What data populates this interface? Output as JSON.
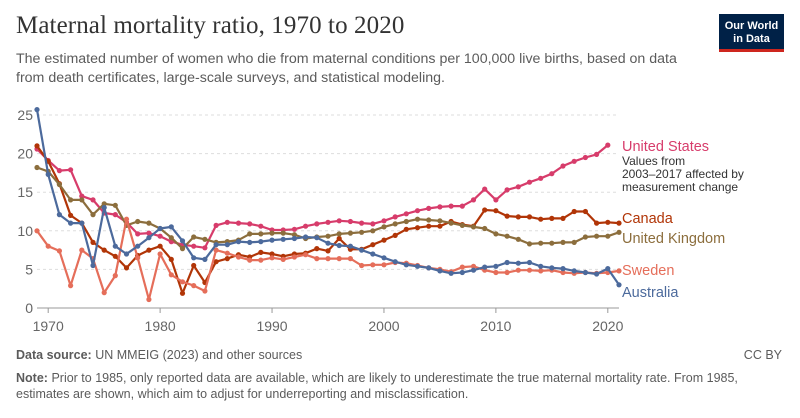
{
  "header": {
    "title": "Maternal mortality ratio, 1970 to 2020",
    "subtitle": "The estimated number of women who die from maternal conditions per 100,000 live births, based on data from death certificates, large-scale surveys, and statistical modeling.",
    "logo_line1": "Our World",
    "logo_line2": "in Data"
  },
  "footer": {
    "source_label": "Data source:",
    "source_text": "UN MMEIG (2023) and other sources",
    "license": "CC BY",
    "note_label": "Note:",
    "note_text": "Prior to 1985, only reported data are available, which are likely to underestimate the true maternal mortality rate. From 1985, estimates are shown, which aim to adjust for underreporting and misclassification."
  },
  "chart_data": {
    "type": "line",
    "title": "Maternal mortality ratio, 1970 to 2020",
    "xlabel": "",
    "ylabel": "",
    "xlim": [
      1969,
      2021
    ],
    "ylim": [
      0,
      25
    ],
    "yticks": [
      0,
      5,
      10,
      15,
      20,
      25
    ],
    "xticks": [
      1970,
      1980,
      1990,
      2000,
      2010,
      2020
    ],
    "grid": "horizontal dashed",
    "annotation": {
      "series": "United States",
      "lines": [
        "Values from",
        "2003–2017 affected by",
        "measurement change"
      ]
    },
    "series": [
      {
        "name": "United States",
        "color": "#d73c6b",
        "points": [
          [
            1969,
            20.6
          ],
          [
            1970,
            19.1
          ],
          [
            1971,
            17.8
          ],
          [
            1972,
            17.9
          ],
          [
            1973,
            14.5
          ],
          [
            1974,
            14.0
          ],
          [
            1975,
            12.3
          ],
          [
            1976,
            12.1
          ],
          [
            1977,
            11.1
          ],
          [
            1978,
            9.6
          ],
          [
            1979,
            9.7
          ],
          [
            1980,
            9.3
          ],
          [
            1981,
            8.6
          ],
          [
            1982,
            8.2
          ],
          [
            1983,
            8.0
          ],
          [
            1984,
            7.8
          ],
          [
            1985,
            10.7
          ],
          [
            1986,
            11.1
          ],
          [
            1987,
            11.0
          ],
          [
            1988,
            10.9
          ],
          [
            1989,
            10.6
          ],
          [
            1990,
            10.1
          ],
          [
            1991,
            10.1
          ],
          [
            1992,
            10.2
          ],
          [
            1993,
            10.6
          ],
          [
            1994,
            10.9
          ],
          [
            1995,
            11.1
          ],
          [
            1996,
            11.3
          ],
          [
            1997,
            11.2
          ],
          [
            1998,
            11.0
          ],
          [
            1999,
            10.9
          ],
          [
            2000,
            11.3
          ],
          [
            2001,
            11.8
          ],
          [
            2002,
            12.2
          ],
          [
            2003,
            12.6
          ],
          [
            2004,
            12.9
          ],
          [
            2005,
            13.1
          ],
          [
            2006,
            13.2
          ],
          [
            2007,
            13.2
          ],
          [
            2008,
            14.0
          ],
          [
            2009,
            15.4
          ],
          [
            2010,
            14.0
          ],
          [
            2011,
            15.3
          ],
          [
            2012,
            15.7
          ],
          [
            2013,
            16.3
          ],
          [
            2014,
            16.8
          ],
          [
            2015,
            17.4
          ],
          [
            2016,
            18.4
          ],
          [
            2017,
            19.0
          ],
          [
            2018,
            19.5
          ],
          [
            2019,
            19.9
          ],
          [
            2020,
            21.1
          ]
        ]
      },
      {
        "name": "Canada",
        "color": "#b13507",
        "points": [
          [
            1969,
            21.0
          ],
          [
            1970,
            19.0
          ],
          [
            1971,
            16.1
          ],
          [
            1972,
            12.0
          ],
          [
            1973,
            11.0
          ],
          [
            1974,
            8.5
          ],
          [
            1975,
            7.5
          ],
          [
            1976,
            6.7
          ],
          [
            1977,
            5.2
          ],
          [
            1978,
            6.8
          ],
          [
            1979,
            7.5
          ],
          [
            1980,
            8.0
          ],
          [
            1981,
            6.3
          ],
          [
            1982,
            1.9
          ],
          [
            1983,
            5.5
          ],
          [
            1984,
            3.3
          ],
          [
            1985,
            6.0
          ],
          [
            1986,
            6.4
          ],
          [
            1987,
            6.9
          ],
          [
            1988,
            6.6
          ],
          [
            1989,
            7.2
          ],
          [
            1990,
            7.0
          ],
          [
            1991,
            6.7
          ],
          [
            1992,
            7.0
          ],
          [
            1993,
            7.1
          ],
          [
            1994,
            7.7
          ],
          [
            1995,
            7.4
          ],
          [
            1996,
            9.0
          ],
          [
            1997,
            7.6
          ],
          [
            1998,
            7.6
          ],
          [
            1999,
            8.2
          ],
          [
            2000,
            8.8
          ],
          [
            2001,
            9.4
          ],
          [
            2002,
            10.2
          ],
          [
            2003,
            10.4
          ],
          [
            2004,
            10.6
          ],
          [
            2005,
            10.6
          ],
          [
            2006,
            11.2
          ],
          [
            2007,
            10.8
          ],
          [
            2008,
            10.6
          ],
          [
            2009,
            12.7
          ],
          [
            2010,
            12.6
          ],
          [
            2011,
            11.9
          ],
          [
            2012,
            11.8
          ],
          [
            2013,
            11.8
          ],
          [
            2014,
            11.5
          ],
          [
            2015,
            11.6
          ],
          [
            2016,
            11.6
          ],
          [
            2017,
            12.5
          ],
          [
            2018,
            12.5
          ],
          [
            2019,
            11.0
          ],
          [
            2020,
            11.1
          ],
          [
            2021,
            11.0
          ]
        ]
      },
      {
        "name": "United Kingdom",
        "color": "#8c6e3d",
        "points": [
          [
            1969,
            18.2
          ],
          [
            1970,
            17.7
          ],
          [
            1971,
            16.0
          ],
          [
            1972,
            14.0
          ],
          [
            1973,
            14.0
          ],
          [
            1974,
            12.1
          ],
          [
            1975,
            13.5
          ],
          [
            1976,
            13.3
          ],
          [
            1977,
            10.7
          ],
          [
            1978,
            11.2
          ],
          [
            1979,
            11.0
          ],
          [
            1980,
            10.3
          ],
          [
            1981,
            9.1
          ],
          [
            1982,
            7.7
          ],
          [
            1983,
            9.2
          ],
          [
            1984,
            8.9
          ],
          [
            1985,
            8.5
          ],
          [
            1986,
            8.6
          ],
          [
            1987,
            8.8
          ],
          [
            1988,
            9.6
          ],
          [
            1989,
            9.6
          ],
          [
            1990,
            9.7
          ],
          [
            1991,
            9.7
          ],
          [
            1992,
            9.5
          ],
          [
            1993,
            9.0
          ],
          [
            1994,
            9.2
          ],
          [
            1995,
            9.3
          ],
          [
            1996,
            9.6
          ],
          [
            1997,
            9.7
          ],
          [
            1998,
            9.8
          ],
          [
            1999,
            10.0
          ],
          [
            2000,
            10.5
          ],
          [
            2001,
            10.9
          ],
          [
            2002,
            11.2
          ],
          [
            2003,
            11.5
          ],
          [
            2004,
            11.4
          ],
          [
            2005,
            11.3
          ],
          [
            2006,
            11.0
          ],
          [
            2007,
            10.7
          ],
          [
            2008,
            10.5
          ],
          [
            2009,
            10.3
          ],
          [
            2010,
            9.6
          ],
          [
            2011,
            9.3
          ],
          [
            2012,
            8.9
          ],
          [
            2013,
            8.3
          ],
          [
            2014,
            8.4
          ],
          [
            2015,
            8.4
          ],
          [
            2016,
            8.5
          ],
          [
            2017,
            8.5
          ],
          [
            2018,
            9.2
          ],
          [
            2019,
            9.3
          ],
          [
            2020,
            9.3
          ],
          [
            2021,
            9.8
          ]
        ]
      },
      {
        "name": "Sweden",
        "color": "#e56e5a",
        "points": [
          [
            1969,
            10.0
          ],
          [
            1970,
            8.0
          ],
          [
            1971,
            7.4
          ],
          [
            1972,
            2.9
          ],
          [
            1973,
            7.5
          ],
          [
            1974,
            6.4
          ],
          [
            1975,
            2.0
          ],
          [
            1976,
            4.2
          ],
          [
            1977,
            11.5
          ],
          [
            1978,
            6.5
          ],
          [
            1979,
            1.1
          ],
          [
            1980,
            7.0
          ],
          [
            1981,
            4.3
          ],
          [
            1982,
            3.4
          ],
          [
            1983,
            2.9
          ],
          [
            1984,
            2.2
          ],
          [
            1985,
            7.5
          ],
          [
            1986,
            7.1
          ],
          [
            1987,
            6.6
          ],
          [
            1988,
            6.2
          ],
          [
            1989,
            6.2
          ],
          [
            1990,
            6.5
          ],
          [
            1991,
            6.3
          ],
          [
            1992,
            6.6
          ],
          [
            1993,
            6.9
          ],
          [
            1994,
            6.4
          ],
          [
            1995,
            6.4
          ],
          [
            1996,
            6.4
          ],
          [
            1997,
            6.4
          ],
          [
            1998,
            5.5
          ],
          [
            1999,
            5.6
          ],
          [
            2000,
            5.6
          ],
          [
            2001,
            5.9
          ],
          [
            2002,
            5.8
          ],
          [
            2003,
            5.5
          ],
          [
            2004,
            5.2
          ],
          [
            2005,
            5.0
          ],
          [
            2006,
            4.7
          ],
          [
            2007,
            5.3
          ],
          [
            2008,
            5.4
          ],
          [
            2009,
            4.9
          ],
          [
            2010,
            4.6
          ],
          [
            2011,
            4.6
          ],
          [
            2012,
            4.9
          ],
          [
            2013,
            4.9
          ],
          [
            2014,
            4.8
          ],
          [
            2015,
            4.9
          ],
          [
            2016,
            4.6
          ],
          [
            2017,
            4.5
          ],
          [
            2018,
            4.6
          ],
          [
            2019,
            4.5
          ],
          [
            2020,
            4.6
          ],
          [
            2021,
            4.8
          ]
        ]
      },
      {
        "name": "Australia",
        "color": "#4c6a9c",
        "points": [
          [
            1969,
            25.7
          ],
          [
            1970,
            17.3
          ],
          [
            1971,
            12.1
          ],
          [
            1972,
            11.0
          ],
          [
            1973,
            11.0
          ],
          [
            1974,
            5.5
          ],
          [
            1975,
            13.0
          ],
          [
            1976,
            8.0
          ],
          [
            1977,
            7.0
          ],
          [
            1978,
            8.0
          ],
          [
            1979,
            9.1
          ],
          [
            1980,
            10.3
          ],
          [
            1981,
            10.5
          ],
          [
            1982,
            8.7
          ],
          [
            1983,
            6.5
          ],
          [
            1984,
            6.3
          ],
          [
            1985,
            8.2
          ],
          [
            1986,
            8.2
          ],
          [
            1987,
            8.6
          ],
          [
            1988,
            8.5
          ],
          [
            1989,
            8.6
          ],
          [
            1990,
            8.8
          ],
          [
            1991,
            8.9
          ],
          [
            1992,
            9.0
          ],
          [
            1993,
            9.2
          ],
          [
            1994,
            9.1
          ],
          [
            1995,
            8.4
          ],
          [
            1996,
            8.1
          ],
          [
            1997,
            8.0
          ],
          [
            1998,
            7.5
          ],
          [
            1999,
            7.0
          ],
          [
            2000,
            6.5
          ],
          [
            2001,
            6.0
          ],
          [
            2002,
            5.6
          ],
          [
            2003,
            5.4
          ],
          [
            2004,
            5.2
          ],
          [
            2005,
            4.8
          ],
          [
            2006,
            4.5
          ],
          [
            2007,
            4.6
          ],
          [
            2008,
            4.9
          ],
          [
            2009,
            5.3
          ],
          [
            2010,
            5.4
          ],
          [
            2011,
            5.9
          ],
          [
            2012,
            5.8
          ],
          [
            2013,
            5.9
          ],
          [
            2014,
            5.4
          ],
          [
            2015,
            5.2
          ],
          [
            2016,
            5.1
          ],
          [
            2017,
            4.8
          ],
          [
            2018,
            4.6
          ],
          [
            2019,
            4.4
          ],
          [
            2020,
            5.1
          ],
          [
            2021,
            3.0
          ]
        ]
      }
    ]
  }
}
